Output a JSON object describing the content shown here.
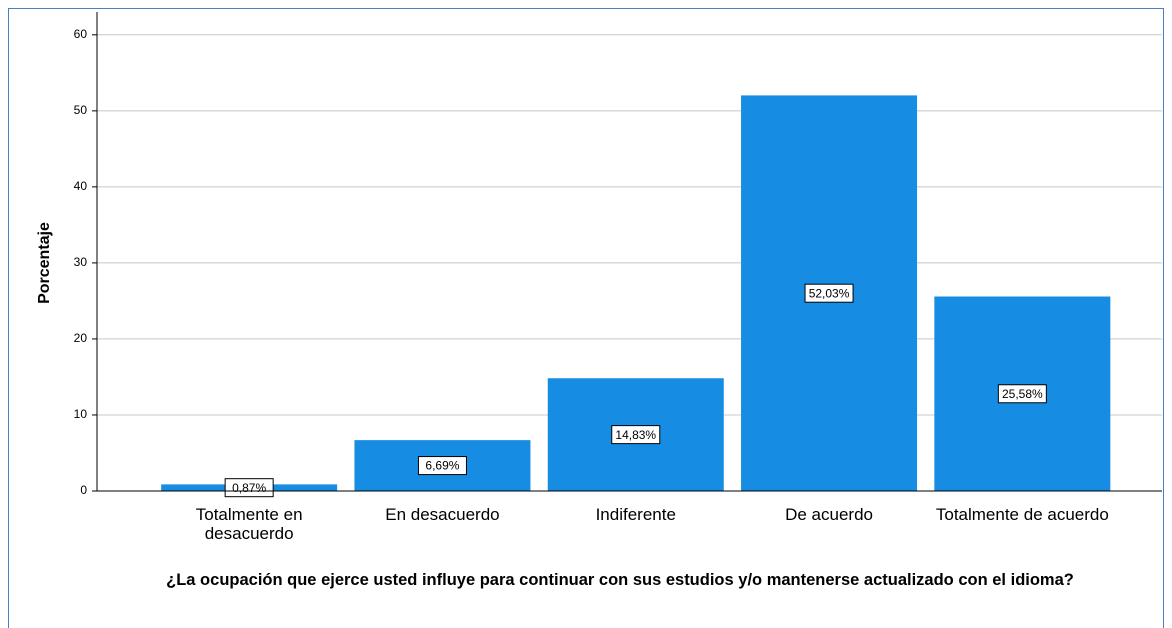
{
  "chart_data": {
    "type": "bar",
    "x_label": "¿La ocupación que ejerce usted influye para continuar con sus estudios y/o mantenerse actualizado con el idioma?",
    "y_label": "Porcentaje",
    "categories": [
      "Totalmente en desacuerdo",
      "En desacuerdo",
      "Indiferente",
      "De acuerdo",
      "Totalmente de acuerdo"
    ],
    "values": [
      0.87,
      6.69,
      14.83,
      52.03,
      25.58
    ],
    "value_labels": [
      "0,87%",
      "6,69%",
      "14,83%",
      "52,03%",
      "25,58%"
    ],
    "color": "#168de2",
    "ylim": [
      0,
      63
    ],
    "yticks": [
      0,
      10,
      20,
      30,
      40,
      50,
      60
    ],
    "grid": true
  }
}
